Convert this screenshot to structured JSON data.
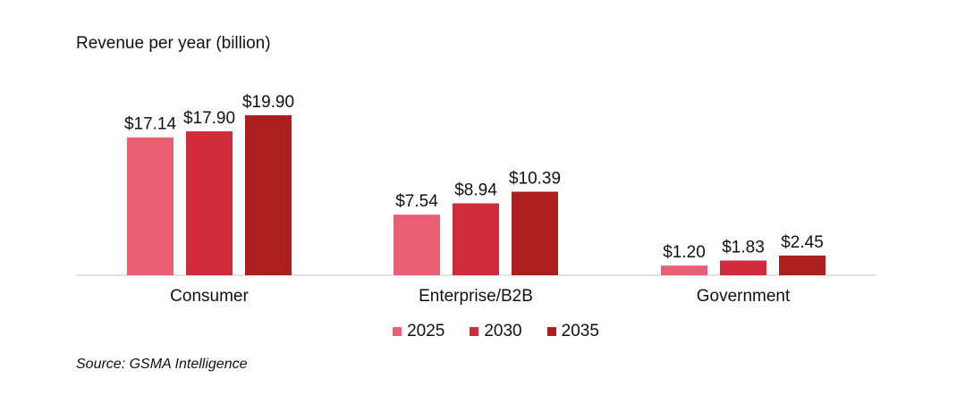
{
  "chart_data": {
    "type": "bar",
    "title": "Revenue per year (billion)",
    "categories": [
      "Consumer",
      "Enterprise/B2B",
      "Government"
    ],
    "series": [
      {
        "name": "2025",
        "color": "#ea5f74",
        "values": [
          17.14,
          7.54,
          1.2
        ],
        "labels": [
          "$17.14",
          "$7.54",
          "$1.20"
        ]
      },
      {
        "name": "2030",
        "color": "#d02b3a",
        "values": [
          17.9,
          8.94,
          1.83
        ],
        "labels": [
          "$17.90",
          "$8.94",
          "$1.83"
        ]
      },
      {
        "name": "2035",
        "color": "#ac1f1e",
        "values": [
          19.9,
          10.39,
          2.45
        ],
        "labels": [
          "$19.90",
          "$10.39",
          "$2.45"
        ]
      }
    ],
    "xlabel": "",
    "ylabel": "",
    "ylim": [
      0,
      20
    ],
    "grid": false,
    "legend": "bottom-center"
  },
  "source": "Source: GSMA Intelligence"
}
